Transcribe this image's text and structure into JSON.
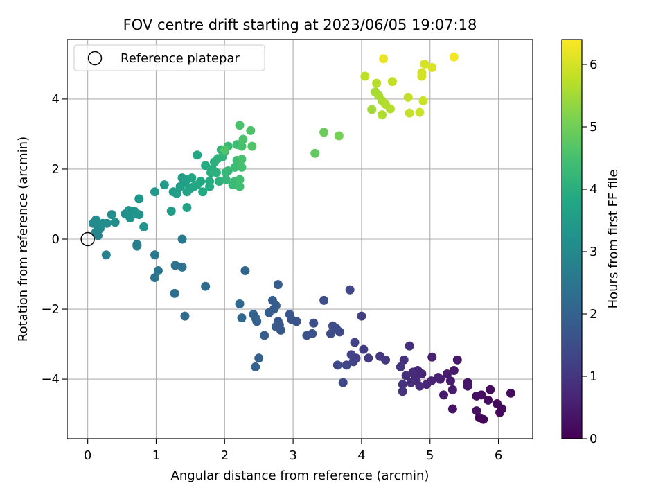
{
  "chart_data": {
    "type": "scatter",
    "title": "FOV centre drift starting at 2023/06/05 19:07:18",
    "xlabel": "Angular distance from reference (arcmin)",
    "ylabel": "Rotation from reference (arcmin)",
    "xlim": [
      -0.3,
      6.5
    ],
    "ylim": [
      -5.7,
      5.7
    ],
    "xticks": [
      0,
      1,
      2,
      3,
      4,
      5,
      6
    ],
    "yticks": [
      -4,
      -2,
      0,
      2,
      4
    ],
    "grid": true,
    "legend": {
      "position": "top-left",
      "entries": [
        "Reference platepar"
      ]
    },
    "reference_point": {
      "x": 0,
      "y": 0,
      "label": "Reference platepar"
    },
    "colorbar": {
      "label": "Hours from first FF file",
      "range": [
        0,
        6.4
      ],
      "ticks": [
        0,
        1,
        2,
        3,
        4,
        5,
        6
      ],
      "colormap": "viridis"
    },
    "points": [
      {
        "x": 5.78,
        "y": -5.15,
        "h": 0.05
      },
      {
        "x": 5.72,
        "y": -5.1,
        "h": 0.08
      },
      {
        "x": 6.02,
        "y": -4.95,
        "h": 0.1
      },
      {
        "x": 6.05,
        "y": -4.85,
        "h": 0.12
      },
      {
        "x": 5.98,
        "y": -4.7,
        "h": 0.15
      },
      {
        "x": 5.85,
        "y": -4.6,
        "h": 0.18
      },
      {
        "x": 6.18,
        "y": -4.4,
        "h": 0.2
      },
      {
        "x": 5.88,
        "y": -4.3,
        "h": 0.22
      },
      {
        "x": 5.75,
        "y": -4.45,
        "h": 0.25
      },
      {
        "x": 5.68,
        "y": -4.48,
        "h": 0.28
      },
      {
        "x": 5.68,
        "y": -4.9,
        "h": 0.3
      },
      {
        "x": 5.33,
        "y": -4.85,
        "h": 0.32
      },
      {
        "x": 5.55,
        "y": -4.1,
        "h": 0.35
      },
      {
        "x": 5.55,
        "y": -4.2,
        "h": 0.38
      },
      {
        "x": 5.4,
        "y": -3.45,
        "h": 0.4
      },
      {
        "x": 5.35,
        "y": -3.75,
        "h": 0.42
      },
      {
        "x": 5.33,
        "y": -4.3,
        "h": 0.45
      },
      {
        "x": 5.3,
        "y": -4.05,
        "h": 0.48
      },
      {
        "x": 5.2,
        "y": -4.45,
        "h": 0.5
      },
      {
        "x": 5.25,
        "y": -3.85,
        "h": 0.52
      },
      {
        "x": 5.15,
        "y": -4.0,
        "h": 0.55
      },
      {
        "x": 5.12,
        "y": -3.95,
        "h": 0.58
      },
      {
        "x": 5.03,
        "y": -3.37,
        "h": 0.6
      },
      {
        "x": 5.02,
        "y": -4.05,
        "h": 0.62
      },
      {
        "x": 4.95,
        "y": -4.15,
        "h": 0.65
      },
      {
        "x": 4.88,
        "y": -3.85,
        "h": 0.68
      },
      {
        "x": 4.82,
        "y": -3.75,
        "h": 0.7
      },
      {
        "x": 4.78,
        "y": -3.9,
        "h": 0.72
      },
      {
        "x": 4.75,
        "y": -3.8,
        "h": 0.75
      },
      {
        "x": 4.8,
        "y": -4.05,
        "h": 0.78
      },
      {
        "x": 4.85,
        "y": -4.2,
        "h": 0.8
      },
      {
        "x": 4.72,
        "y": -4.1,
        "h": 0.82
      },
      {
        "x": 4.7,
        "y": -3.05,
        "h": 0.85
      },
      {
        "x": 4.65,
        "y": -3.9,
        "h": 0.88
      },
      {
        "x": 4.6,
        "y": -4.15,
        "h": 0.9
      },
      {
        "x": 4.62,
        "y": -3.45,
        "h": 0.92
      },
      {
        "x": 4.6,
        "y": -4.35,
        "h": 0.95
      },
      {
        "x": 4.57,
        "y": -3.65,
        "h": 0.98
      },
      {
        "x": 4.35,
        "y": -3.45,
        "h": 1.0
      },
      {
        "x": 4.27,
        "y": -3.35,
        "h": 1.05
      },
      {
        "x": 4.1,
        "y": -3.4,
        "h": 1.1
      },
      {
        "x": 4.03,
        "y": -3.15,
        "h": 1.15
      },
      {
        "x": 4.0,
        "y": -2.2,
        "h": 1.2
      },
      {
        "x": 3.92,
        "y": -3.4,
        "h": 1.22
      },
      {
        "x": 3.9,
        "y": -2.95,
        "h": 1.25
      },
      {
        "x": 3.85,
        "y": -3.3,
        "h": 1.28
      },
      {
        "x": 3.88,
        "y": -3.5,
        "h": 1.3
      },
      {
        "x": 3.83,
        "y": -1.45,
        "h": 1.32
      },
      {
        "x": 3.78,
        "y": -3.6,
        "h": 1.35
      },
      {
        "x": 3.73,
        "y": -4.1,
        "h": 1.38
      },
      {
        "x": 3.65,
        "y": -3.6,
        "h": 1.4
      },
      {
        "x": 3.68,
        "y": -2.65,
        "h": 1.42
      },
      {
        "x": 3.63,
        "y": -2.55,
        "h": 1.45
      },
      {
        "x": 3.58,
        "y": -2.48,
        "h": 1.48
      },
      {
        "x": 3.55,
        "y": -2.7,
        "h": 1.5
      },
      {
        "x": 3.45,
        "y": -1.75,
        "h": 1.52
      },
      {
        "x": 3.3,
        "y": -2.4,
        "h": 1.55
      },
      {
        "x": 3.28,
        "y": -2.7,
        "h": 1.58
      },
      {
        "x": 3.2,
        "y": -2.75,
        "h": 1.6
      },
      {
        "x": 3.05,
        "y": -2.35,
        "h": 1.62
      },
      {
        "x": 2.98,
        "y": -2.3,
        "h": 1.65
      },
      {
        "x": 2.95,
        "y": -2.15,
        "h": 1.68
      },
      {
        "x": 2.82,
        "y": -2.6,
        "h": 1.7
      },
      {
        "x": 2.8,
        "y": -2.45,
        "h": 1.72
      },
      {
        "x": 2.78,
        "y": -2.35,
        "h": 1.75
      },
      {
        "x": 2.75,
        "y": -2.5,
        "h": 1.78
      },
      {
        "x": 2.78,
        "y": -1.3,
        "h": 1.8
      },
      {
        "x": 2.75,
        "y": -1.9,
        "h": 1.82
      },
      {
        "x": 2.72,
        "y": -2.0,
        "h": 1.85
      },
      {
        "x": 2.7,
        "y": -1.75,
        "h": 1.88
      },
      {
        "x": 2.65,
        "y": -2.1,
        "h": 1.9
      },
      {
        "x": 2.58,
        "y": -2.75,
        "h": 1.92
      },
      {
        "x": 2.5,
        "y": -3.4,
        "h": 1.95
      },
      {
        "x": 2.47,
        "y": -2.35,
        "h": 1.98
      },
      {
        "x": 2.45,
        "y": -2.25,
        "h": 2.0
      },
      {
        "x": 2.45,
        "y": -3.65,
        "h": 2.02
      },
      {
        "x": 2.42,
        "y": -2.15,
        "h": 2.05
      },
      {
        "x": 2.3,
        "y": -0.9,
        "h": 2.1
      },
      {
        "x": 2.25,
        "y": -2.25,
        "h": 2.12
      },
      {
        "x": 2.22,
        "y": -1.85,
        "h": 2.15
      },
      {
        "x": 1.42,
        "y": -2.2,
        "h": 2.2
      },
      {
        "x": 1.72,
        "y": -1.35,
        "h": 2.25
      },
      {
        "x": 1.27,
        "y": -1.55,
        "h": 2.3
      },
      {
        "x": 1.38,
        "y": -0.8,
        "h": 2.35
      },
      {
        "x": 1.28,
        "y": -0.75,
        "h": 2.4
      },
      {
        "x": 0.98,
        "y": -1.1,
        "h": 2.45
      },
      {
        "x": 1.03,
        "y": -0.9,
        "h": 2.5
      },
      {
        "x": 0.98,
        "y": -0.45,
        "h": 2.55
      },
      {
        "x": 1.38,
        "y": 0.0,
        "h": 2.6
      },
      {
        "x": 0.72,
        "y": -0.2,
        "h": 2.7
      },
      {
        "x": 0.72,
        "y": -0.15,
        "h": 2.75
      },
      {
        "x": 0.27,
        "y": -0.45,
        "h": 2.8
      },
      {
        "x": 0.15,
        "y": 0.1,
        "h": 2.85
      },
      {
        "x": 0.12,
        "y": 0.2,
        "h": 2.9
      },
      {
        "x": 0.18,
        "y": 0.3,
        "h": 2.95
      },
      {
        "x": 0.15,
        "y": 0.35,
        "h": 3.0
      },
      {
        "x": 0.08,
        "y": 0.45,
        "h": 3.02
      },
      {
        "x": 0.12,
        "y": 0.55,
        "h": 3.05
      },
      {
        "x": 0.28,
        "y": 0.45,
        "h": 3.08
      },
      {
        "x": 0.22,
        "y": 0.45,
        "h": 3.1
      },
      {
        "x": 0.4,
        "y": 0.48,
        "h": 3.12
      },
      {
        "x": 0.35,
        "y": 0.7,
        "h": 3.15
      },
      {
        "x": 0.55,
        "y": 0.72,
        "h": 3.18
      },
      {
        "x": 0.62,
        "y": 0.6,
        "h": 3.2
      },
      {
        "x": 0.6,
        "y": 0.82,
        "h": 3.22
      },
      {
        "x": 0.68,
        "y": 0.8,
        "h": 3.25
      },
      {
        "x": 0.7,
        "y": 0.72,
        "h": 3.28
      },
      {
        "x": 0.75,
        "y": 0.7,
        "h": 3.3
      },
      {
        "x": 0.82,
        "y": 0.35,
        "h": 3.32
      },
      {
        "x": 0.75,
        "y": 1.15,
        "h": 3.35
      },
      {
        "x": 0.98,
        "y": 1.35,
        "h": 3.4
      },
      {
        "x": 1.12,
        "y": 1.55,
        "h": 3.45
      },
      {
        "x": 1.22,
        "y": 0.8,
        "h": 3.5
      },
      {
        "x": 1.25,
        "y": 1.35,
        "h": 3.52
      },
      {
        "x": 1.3,
        "y": 1.3,
        "h": 3.55
      },
      {
        "x": 1.35,
        "y": 1.5,
        "h": 3.58
      },
      {
        "x": 1.42,
        "y": 1.6,
        "h": 3.6
      },
      {
        "x": 1.38,
        "y": 1.75,
        "h": 3.62
      },
      {
        "x": 1.45,
        "y": 1.7,
        "h": 3.65
      },
      {
        "x": 1.45,
        "y": 0.9,
        "h": 3.68
      },
      {
        "x": 1.45,
        "y": 1.35,
        "h": 3.7
      },
      {
        "x": 1.5,
        "y": 1.45,
        "h": 3.72
      },
      {
        "x": 1.52,
        "y": 1.75,
        "h": 3.75
      },
      {
        "x": 1.55,
        "y": 1.5,
        "h": 3.78
      },
      {
        "x": 1.6,
        "y": 1.55,
        "h": 3.8
      },
      {
        "x": 1.6,
        "y": 2.4,
        "h": 3.82
      },
      {
        "x": 1.65,
        "y": 1.65,
        "h": 3.85
      },
      {
        "x": 1.68,
        "y": 1.35,
        "h": 3.88
      },
      {
        "x": 1.72,
        "y": 2.1,
        "h": 3.9
      },
      {
        "x": 1.78,
        "y": 1.5,
        "h": 3.92
      },
      {
        "x": 1.78,
        "y": 1.65,
        "h": 3.95
      },
      {
        "x": 1.8,
        "y": 1.9,
        "h": 3.98
      },
      {
        "x": 1.82,
        "y": 2.0,
        "h": 4.0
      },
      {
        "x": 1.85,
        "y": 2.2,
        "h": 4.02
      },
      {
        "x": 1.88,
        "y": 1.9,
        "h": 4.05
      },
      {
        "x": 1.9,
        "y": 2.3,
        "h": 4.08
      },
      {
        "x": 1.92,
        "y": 1.65,
        "h": 4.1
      },
      {
        "x": 1.95,
        "y": 2.55,
        "h": 4.12
      },
      {
        "x": 1.97,
        "y": 2.35,
        "h": 4.15
      },
      {
        "x": 2.0,
        "y": 2.5,
        "h": 4.18
      },
      {
        "x": 2.02,
        "y": 1.7,
        "h": 4.2
      },
      {
        "x": 2.02,
        "y": 1.9,
        "h": 4.22
      },
      {
        "x": 2.05,
        "y": 1.95,
        "h": 4.25
      },
      {
        "x": 2.05,
        "y": 2.65,
        "h": 4.28
      },
      {
        "x": 2.12,
        "y": 1.55,
        "h": 4.3
      },
      {
        "x": 2.15,
        "y": 1.65,
        "h": 4.32
      },
      {
        "x": 2.15,
        "y": 2.05,
        "h": 4.35
      },
      {
        "x": 2.18,
        "y": 2.25,
        "h": 4.38
      },
      {
        "x": 2.18,
        "y": 2.7,
        "h": 4.4
      },
      {
        "x": 2.22,
        "y": 1.5,
        "h": 4.42
      },
      {
        "x": 2.22,
        "y": 1.7,
        "h": 4.45
      },
      {
        "x": 2.25,
        "y": 2.05,
        "h": 4.48
      },
      {
        "x": 2.25,
        "y": 2.28,
        "h": 4.5
      },
      {
        "x": 2.25,
        "y": 2.65,
        "h": 4.52
      },
      {
        "x": 2.22,
        "y": 3.25,
        "h": 4.55
      },
      {
        "x": 2.27,
        "y": 2.85,
        "h": 4.58
      },
      {
        "x": 2.38,
        "y": 3.1,
        "h": 4.6
      },
      {
        "x": 2.4,
        "y": 2.65,
        "h": 4.62
      },
      {
        "x": 2.0,
        "y": 2.55,
        "h": 4.65
      },
      {
        "x": 3.32,
        "y": 2.45,
        "h": 4.85
      },
      {
        "x": 3.45,
        "y": 3.05,
        "h": 4.95
      },
      {
        "x": 3.67,
        "y": 2.95,
        "h": 5.05
      },
      {
        "x": 4.15,
        "y": 3.7,
        "h": 5.5
      },
      {
        "x": 4.2,
        "y": 4.2,
        "h": 5.55
      },
      {
        "x": 4.25,
        "y": 4.1,
        "h": 5.58
      },
      {
        "x": 4.3,
        "y": 3.95,
        "h": 5.6
      },
      {
        "x": 4.3,
        "y": 3.55,
        "h": 5.62
      },
      {
        "x": 4.35,
        "y": 3.85,
        "h": 5.65
      },
      {
        "x": 4.42,
        "y": 3.72,
        "h": 5.68
      },
      {
        "x": 4.22,
        "y": 4.45,
        "h": 5.72
      },
      {
        "x": 4.05,
        "y": 4.65,
        "h": 5.75
      },
      {
        "x": 4.45,
        "y": 4.5,
        "h": 5.8
      },
      {
        "x": 4.68,
        "y": 4.05,
        "h": 5.82
      },
      {
        "x": 4.7,
        "y": 3.6,
        "h": 5.85
      },
      {
        "x": 4.85,
        "y": 3.62,
        "h": 5.88
      },
      {
        "x": 4.9,
        "y": 3.95,
        "h": 5.9
      },
      {
        "x": 4.88,
        "y": 4.65,
        "h": 5.95
      },
      {
        "x": 4.88,
        "y": 4.75,
        "h": 5.98
      },
      {
        "x": 4.92,
        "y": 5.0,
        "h": 6.0
      },
      {
        "x": 5.03,
        "y": 4.9,
        "h": 6.05
      },
      {
        "x": 4.32,
        "y": 5.15,
        "h": 6.2
      },
      {
        "x": 5.35,
        "y": 5.2,
        "h": 6.3
      }
    ]
  }
}
